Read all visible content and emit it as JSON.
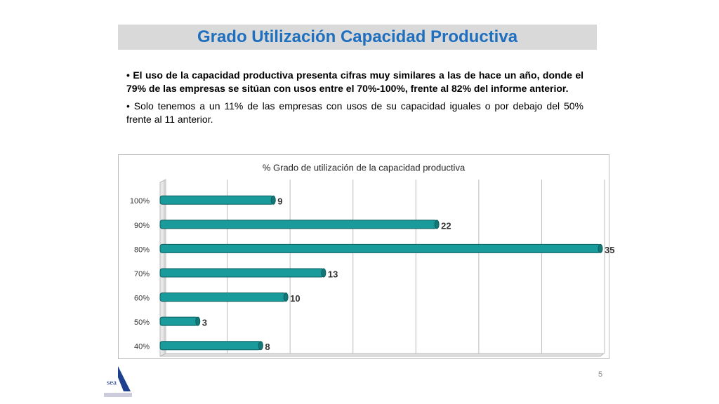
{
  "header": {
    "title": "Grado Utilización Capacidad Productiva"
  },
  "bullets": [
    "• El uso de la capacidad productiva presenta cifras muy similares a las de hace un año, donde el 79% de las empresas se sitúan con usos entre el 70%-100%, frente al 82% del informe anterior.",
    "• Solo tenemos a un 11% de las empresas con usos de su capacidad iguales o por debajo del 50% frente al 11 anterior."
  ],
  "chart_data": {
    "type": "bar",
    "orientation": "horizontal",
    "title": "% Grado de utilización de la capacidad productiva",
    "categories": [
      "40%",
      "50%",
      "60%",
      "70%",
      "80%",
      "90%",
      "100%"
    ],
    "values": [
      8,
      3,
      10,
      13,
      35,
      22,
      9
    ],
    "color": "#1a9b9b",
    "xlim": [
      0,
      35
    ],
    "xticks": [
      0,
      5,
      10,
      15,
      20,
      25,
      30,
      35
    ],
    "grid": true
  },
  "footer": {
    "logo": "sea",
    "page": "5"
  }
}
